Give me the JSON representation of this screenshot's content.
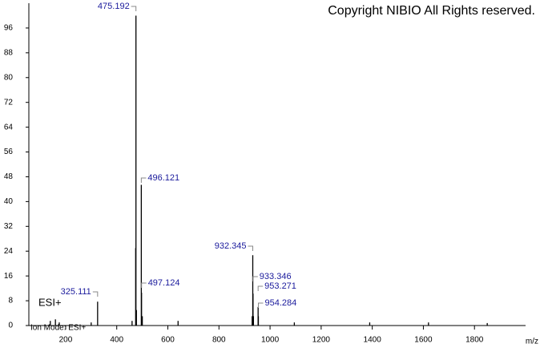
{
  "chart_data": {
    "type": "spectrum",
    "title": "Copyright NIBIO All Rights reserved.",
    "annotation": "ESI+",
    "footer": "Ion Mode: ESI+",
    "x_label": "m/z",
    "xlim": [
      56,
      2000
    ],
    "xticks": [
      200,
      400,
      600,
      800,
      1000,
      1200,
      1400,
      1600,
      1800
    ],
    "ylim": [
      0,
      104
    ],
    "yticks": [
      0,
      8,
      16,
      24,
      32,
      40,
      48,
      56,
      64,
      72,
      80,
      88,
      96
    ],
    "color": "#000000",
    "label_color": "#1a1a9c",
    "peaks": {
      "x": [
        475.192,
        496.121,
        497.124,
        325.111,
        932.345,
        933.346,
        953.271,
        954.284
      ],
      "values": [
        100,
        45.4,
        10.6,
        7.7,
        22.7,
        10.3,
        6,
        3
      ]
    },
    "minor_peaks": {
      "x": [
        140,
        160,
        175,
        300,
        460,
        474,
        477,
        500,
        640,
        930,
        935,
        1095,
        1390,
        1620,
        1850
      ],
      "values": [
        1.5,
        2,
        1,
        1,
        1.5,
        25,
        5,
        3,
        1.5,
        3,
        3,
        1,
        1,
        1,
        0.8
      ]
    }
  }
}
